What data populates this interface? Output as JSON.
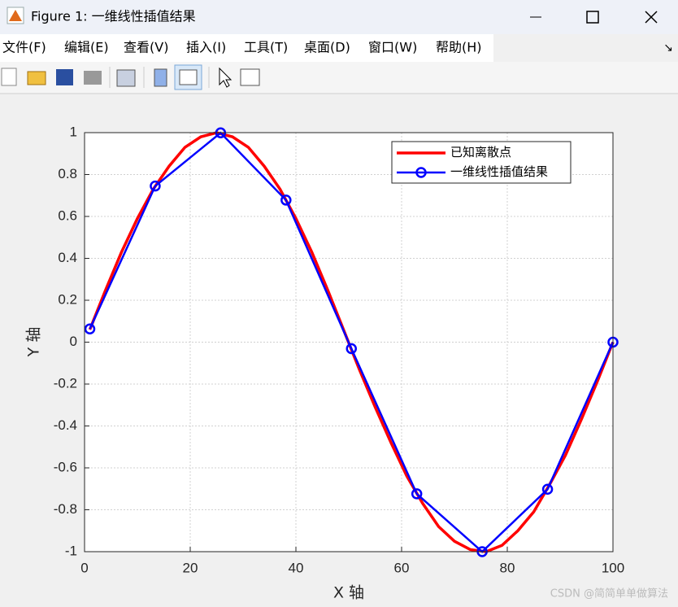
{
  "window": {
    "title": "Figure 1: 一维线性插值结果",
    "menu": [
      "文件(F)",
      "编辑(E)",
      "查看(V)",
      "插入(I)",
      "工具(T)",
      "桌面(D)",
      "窗口(W)",
      "帮助(H)"
    ]
  },
  "chart_data": {
    "type": "line",
    "xlabel": "X 轴",
    "ylabel": "Y 轴",
    "xlim": [
      0,
      100
    ],
    "xticks": [
      0,
      20,
      40,
      60,
      80,
      100
    ],
    "ylim": [
      -1,
      1
    ],
    "yticks": [
      -1,
      -0.8,
      -0.6,
      -0.4,
      -0.2,
      0,
      0.2,
      0.4,
      0.6,
      0.8,
      1
    ],
    "grid": true,
    "legend": "top-right",
    "series": [
      {
        "name": "已知离散点",
        "color": "#ff0000",
        "marker": false,
        "x": [
          1,
          4,
          7,
          10,
          13,
          16,
          19,
          22,
          25,
          28,
          31,
          34,
          37,
          40,
          43,
          46,
          49,
          52,
          55,
          58,
          61,
          64,
          67,
          70,
          73,
          76,
          79,
          82,
          85,
          88,
          91,
          94,
          97,
          100
        ],
        "values": [
          0.06,
          0.25,
          0.43,
          0.59,
          0.73,
          0.84,
          0.93,
          0.98,
          1.0,
          0.98,
          0.93,
          0.84,
          0.73,
          0.59,
          0.43,
          0.25,
          0.06,
          -0.13,
          -0.31,
          -0.48,
          -0.64,
          -0.77,
          -0.88,
          -0.95,
          -0.99,
          -1.0,
          -0.97,
          -0.9,
          -0.81,
          -0.68,
          -0.54,
          -0.37,
          -0.19,
          0
        ]
      },
      {
        "name": "一维线性插值结果",
        "color": "#0000ff",
        "marker": true,
        "x": [
          1,
          13.375,
          25.75,
          38.125,
          50.5,
          62.875,
          75.25,
          87.625,
          100
        ],
        "values": [
          0.063,
          0.745,
          0.999,
          0.678,
          -0.031,
          -0.724,
          -1.0,
          -0.702,
          0
        ]
      }
    ]
  },
  "watermark": "CSDN @简简单单做算法"
}
